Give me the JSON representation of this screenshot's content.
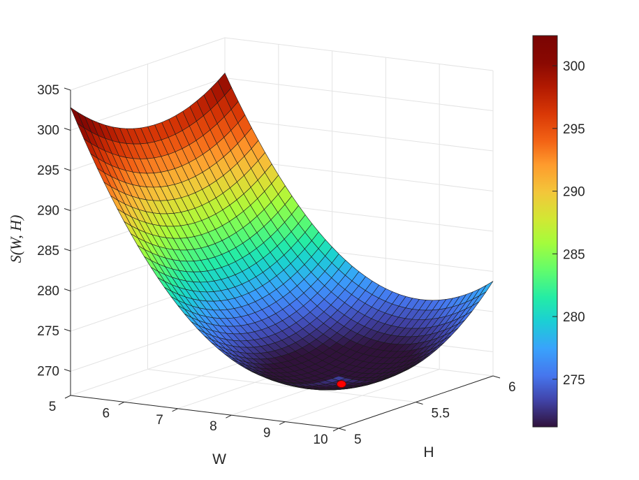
{
  "chart_data": {
    "type": "surface",
    "x": {
      "label": "W",
      "range": [
        5,
        10
      ],
      "ticks": [
        "5",
        "6",
        "7",
        "8",
        "9",
        "10"
      ]
    },
    "y": {
      "label": "H",
      "range": [
        5,
        6
      ],
      "ticks": [
        "5",
        "5.5",
        "6"
      ]
    },
    "z": {
      "label": "S(W, H)",
      "range": [
        267,
        305
      ],
      "ticks": [
        "270",
        "275",
        "280",
        "285",
        "290",
        "295",
        "300",
        "305"
      ]
    },
    "surface": {
      "mesh": [
        41,
        23
      ],
      "corners": [
        {
          "W": 5,
          "H": 5,
          "S": 302.2
        },
        {
          "W": 10,
          "H": 5,
          "S": 268.7
        },
        {
          "W": 5,
          "H": 6,
          "S": 301.5
        },
        {
          "W": 10,
          "H": 6,
          "S": 280.3
        }
      ],
      "minimum": {
        "W": 8.9,
        "H": 5.4,
        "S": 269
      }
    },
    "marker": {
      "W": 8.9,
      "H": 5.4,
      "S": 269,
      "color": "#ff0000"
    },
    "colormap": "turbo",
    "colorbar": {
      "range": [
        271.2,
        302.4
      ],
      "ticks": [
        "275",
        "280",
        "285",
        "290",
        "295",
        "300"
      ]
    },
    "grid": true
  }
}
